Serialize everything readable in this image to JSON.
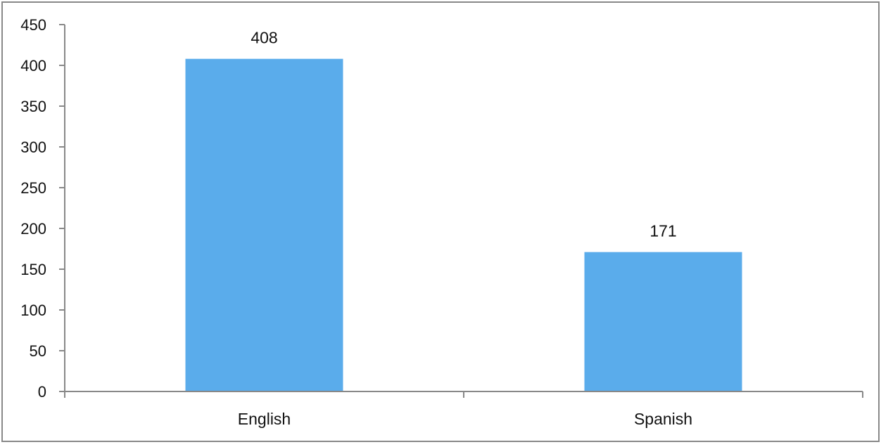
{
  "chart_data": {
    "type": "bar",
    "categories": [
      "English",
      "Spanish"
    ],
    "values": [
      408,
      171
    ],
    "data_labels": [
      "408",
      "171"
    ],
    "title": "",
    "xlabel": "",
    "ylabel": "",
    "ylim": [
      0,
      450
    ],
    "yticks": [
      "0",
      "50",
      "100",
      "150",
      "200",
      "250",
      "300",
      "350",
      "400",
      "450"
    ],
    "grid": false,
    "legend": "none",
    "colors": {
      "bar": "#5AACEB",
      "axis": "#888888",
      "border": "#888888"
    }
  }
}
